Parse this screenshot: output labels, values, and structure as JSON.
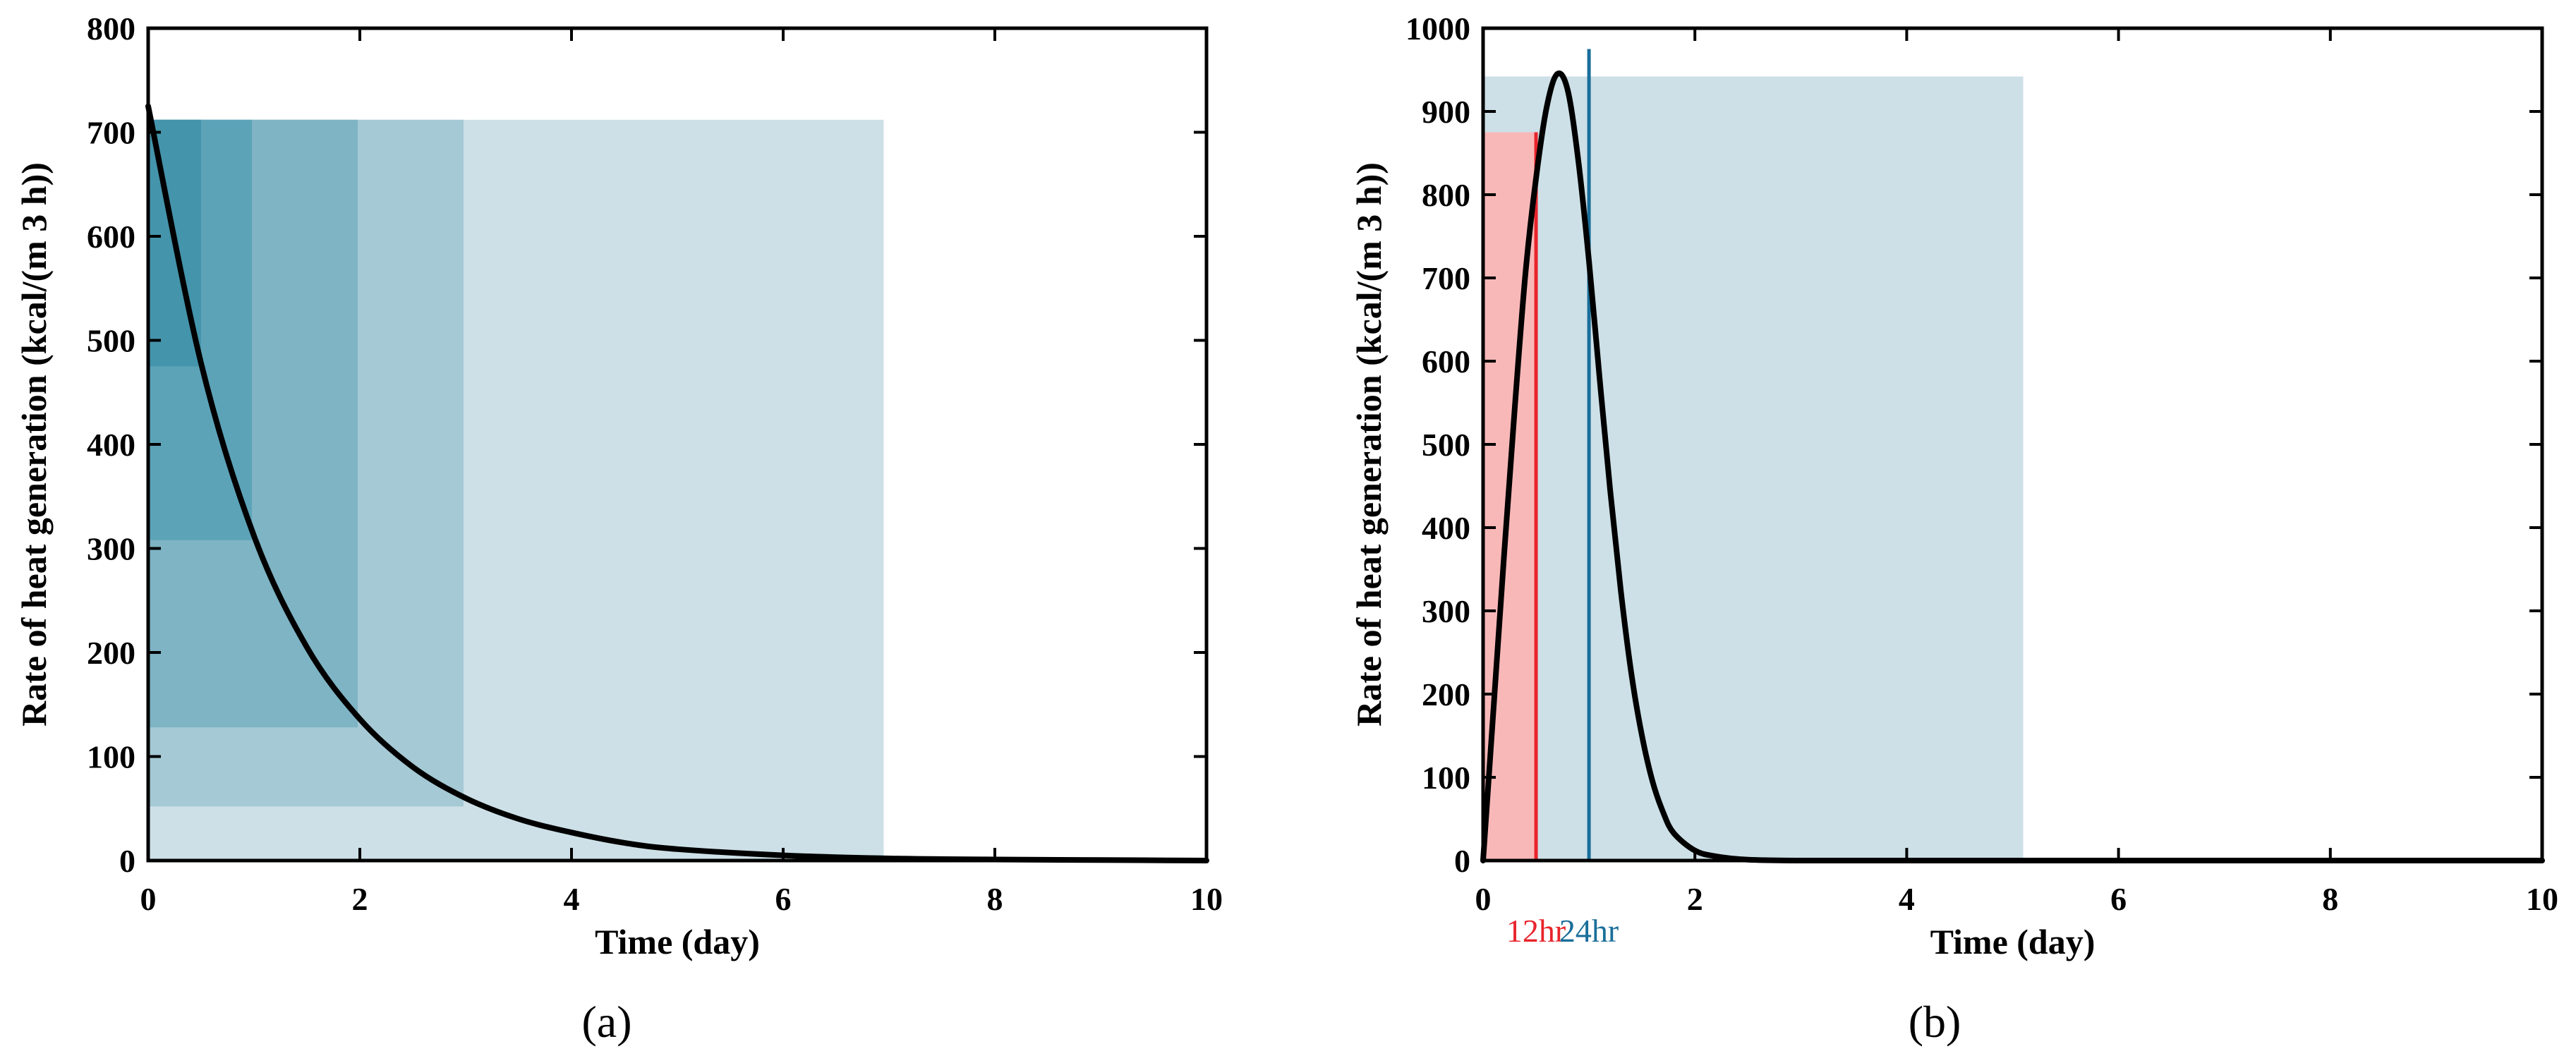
{
  "chart_data": [
    {
      "type": "line",
      "panel_label": "(a)",
      "xlabel": "Time (day)",
      "ylabel": "Rate of heat generation (kcal/(m 3 h))",
      "xlim": [
        0,
        10
      ],
      "ylim": [
        0,
        800
      ],
      "xticks": [
        0,
        2,
        4,
        6,
        8,
        10
      ],
      "yticks": [
        0,
        100,
        200,
        300,
        400,
        500,
        600,
        700,
        800
      ],
      "grid": false,
      "curve_color": "#000000",
      "series": [
        {
          "x": [
            0,
            0.5,
            1,
            1.5,
            2,
            2.5,
            3,
            3.5,
            4,
            4.5,
            5,
            6,
            7,
            8,
            9,
            10
          ],
          "values": [
            725,
            478,
            312,
            205,
            136,
            90,
            60,
            40,
            27,
            17,
            11,
            5,
            2,
            1,
            0.5,
            0
          ]
        }
      ],
      "shaded_regions": [
        {
          "x": [
            0,
            6.95
          ],
          "y": [
            0,
            712
          ],
          "color": "#cde0e7"
        },
        {
          "x": [
            0,
            2.98
          ],
          "y": [
            52,
            712
          ],
          "color": "#a5c9d5"
        },
        {
          "x": [
            0,
            1.98
          ],
          "y": [
            128,
            712
          ],
          "color": "#7eb4c4"
        },
        {
          "x": [
            0,
            0.98
          ],
          "y": [
            308,
            712
          ],
          "color": "#5ca3b8"
        },
        {
          "x": [
            0,
            0.5
          ],
          "y": [
            475,
            712
          ],
          "color": "#4494ab"
        }
      ]
    },
    {
      "type": "line",
      "panel_label": "(b)",
      "xlabel": "Time (day)",
      "ylabel": "Rate of heat generation (kcal/(m 3 h))",
      "xlim": [
        0,
        10
      ],
      "ylim": [
        0,
        1000
      ],
      "xticks": [
        0,
        2,
        4,
        6,
        8,
        10
      ],
      "yticks": [
        0,
        100,
        200,
        300,
        400,
        500,
        600,
        700,
        800,
        900,
        1000
      ],
      "grid": false,
      "curve_color": "#000000",
      "series": [
        {
          "x": [
            0,
            0.1,
            0.2,
            0.3,
            0.4,
            0.5,
            0.6,
            0.7,
            0.8,
            0.9,
            1.0,
            1.1,
            1.2,
            1.3,
            1.4,
            1.5,
            1.6,
            1.7,
            1.8,
            2.0,
            2.2,
            2.5,
            3,
            4,
            6,
            10
          ],
          "values": [
            0,
            185,
            370,
            545,
            705,
            820,
            905,
            945,
            925,
            840,
            720,
            580,
            445,
            325,
            225,
            150,
            95,
            58,
            33,
            12,
            5,
            1,
            0,
            0,
            0,
            0
          ]
        }
      ],
      "shaded_regions": [
        {
          "x": [
            0,
            5.1
          ],
          "y": [
            0,
            942
          ],
          "color": "#cde0e7"
        },
        {
          "x": [
            0,
            0.5
          ],
          "y": [
            0,
            875
          ],
          "color": "#f9b8b8"
        }
      ],
      "markers": [
        {
          "label": "12hr",
          "x": 0.5,
          "y_top": 875,
          "color": "#e8242b"
        },
        {
          "label": "24hr",
          "x": 1.0,
          "y_top": 975,
          "color": "#1a6e9a"
        }
      ]
    }
  ]
}
